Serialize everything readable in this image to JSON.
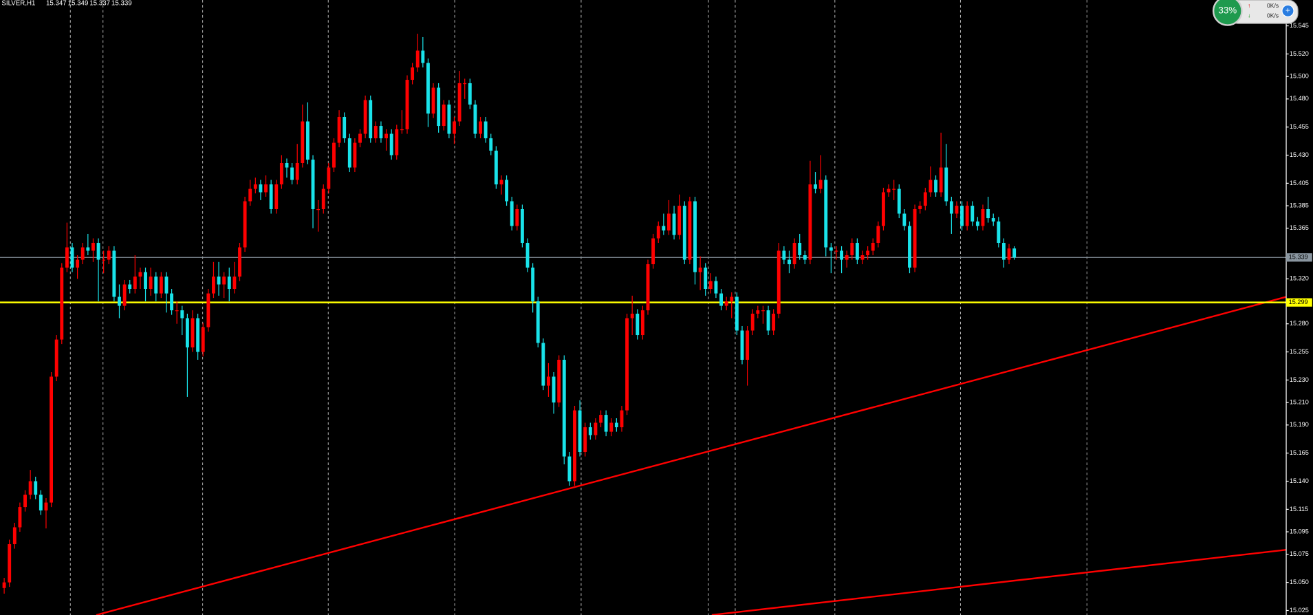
{
  "chart_data": {
    "type": "candlestick",
    "title": "SILVER,H1",
    "quote": [
      15.347,
      15.349,
      15.337,
      15.339
    ],
    "up_color": "#ff0000",
    "down_color": "#19e3ea",
    "ylim": [
      15.021,
      15.568
    ],
    "yticks": [
      15.545,
      {
        "value": 15.52,
        "label": "15.520"
      },
      {
        "value": 15.5,
        "label": "15.500"
      },
      {
        "value": 15.48,
        "label": "15.480"
      },
      15.455,
      {
        "value": 15.43,
        "label": "15.430"
      },
      15.405,
      15.385,
      15.365,
      {
        "value": 15.32,
        "label": "15.320"
      },
      {
        "value": 15.28,
        "label": "15.280"
      },
      15.255,
      {
        "value": 15.23,
        "label": "15.230"
      },
      {
        "value": 15.21,
        "label": "15.210"
      },
      {
        "value": 15.19,
        "label": "15.190"
      },
      15.165,
      {
        "value": 15.14,
        "label": "15.140"
      },
      15.115,
      15.095,
      15.075,
      {
        "value": 15.05,
        "label": "15.050"
      },
      15.025
    ],
    "price_line": {
      "value": 15.339,
      "color": "#8a96a0"
    },
    "level_line": {
      "value": 15.299,
      "color": "#ffff00"
    },
    "trendlines": {
      "color": "#ff0000",
      "lines": [
        {
          "x": [
            17.6,
            245
          ],
          "y": [
            15.021,
            15.304
          ]
        },
        {
          "x": [
            135.2,
            245
          ],
          "y": [
            15.021,
            15.079
          ]
        }
      ]
    },
    "ohlc": [
      [
        15.045,
        15.054,
        15.04,
        15.05
      ],
      [
        15.05,
        15.088,
        15.046,
        15.084
      ],
      [
        15.084,
        15.103,
        15.08,
        15.099
      ],
      [
        15.099,
        15.121,
        15.095,
        15.117
      ],
      [
        15.117,
        15.132,
        15.113,
        15.128
      ],
      [
        15.128,
        15.15,
        15.124,
        15.14
      ],
      [
        15.14,
        15.144,
        15.124,
        15.128
      ],
      [
        15.128,
        15.132,
        15.11,
        15.114
      ],
      [
        15.114,
        15.125,
        15.098,
        15.121
      ],
      [
        15.121,
        15.237,
        15.117,
        15.233
      ],
      [
        15.233,
        15.27,
        15.229,
        15.266
      ],
      [
        15.266,
        15.334,
        15.262,
        15.33
      ],
      [
        15.33,
        15.37,
        15.326,
        15.348
      ],
      [
        15.348,
        15.352,
        15.326,
        15.33
      ],
      [
        15.33,
        15.341,
        15.32,
        15.337
      ],
      [
        15.337,
        15.352,
        15.333,
        15.348
      ],
      [
        15.348,
        15.36,
        15.341,
        15.345
      ],
      [
        15.345,
        15.356,
        15.335,
        15.352
      ],
      [
        15.352,
        15.356,
        15.3,
        15.337
      ],
      [
        15.337,
        15.345,
        15.325,
        15.337
      ],
      [
        15.337,
        15.349,
        15.333,
        15.345
      ],
      [
        15.345,
        15.349,
        15.3,
        15.304
      ],
      [
        15.304,
        15.315,
        15.285,
        15.296
      ],
      [
        15.296,
        15.319,
        15.292,
        15.315
      ],
      [
        15.315,
        15.319,
        15.307,
        15.311
      ],
      [
        15.311,
        15.341,
        15.307,
        15.322
      ],
      [
        15.322,
        15.33,
        15.311,
        15.326
      ],
      [
        15.326,
        15.33,
        15.3,
        15.311
      ],
      [
        15.311,
        15.33,
        15.305,
        15.322
      ],
      [
        15.322,
        15.326,
        15.3,
        15.307
      ],
      [
        15.307,
        15.326,
        15.303,
        15.322
      ],
      [
        15.322,
        15.326,
        15.29,
        15.307
      ],
      [
        15.307,
        15.311,
        15.288,
        15.292
      ],
      [
        15.292,
        15.3,
        15.28,
        15.292
      ],
      [
        15.292,
        15.296,
        15.27,
        15.285
      ],
      [
        15.285,
        15.289,
        15.215,
        15.259
      ],
      [
        15.259,
        15.292,
        15.255,
        15.285
      ],
      [
        15.285,
        15.289,
        15.248,
        15.255
      ],
      [
        15.255,
        15.281,
        15.251,
        15.277
      ],
      [
        15.277,
        15.311,
        15.273,
        15.307
      ],
      [
        15.307,
        15.335,
        15.303,
        15.322
      ],
      [
        15.322,
        15.335,
        15.305,
        15.315
      ],
      [
        15.315,
        15.326,
        15.303,
        15.322
      ],
      [
        15.322,
        15.33,
        15.3,
        15.311
      ],
      [
        15.311,
        15.335,
        15.307,
        15.322
      ],
      [
        15.322,
        15.352,
        15.318,
        15.348
      ],
      [
        15.348,
        15.393,
        15.344,
        15.389
      ],
      [
        15.389,
        15.408,
        15.385,
        15.4
      ],
      [
        15.4,
        15.41,
        15.396,
        15.404
      ],
      [
        15.404,
        15.408,
        15.39,
        15.397
      ],
      [
        15.397,
        15.412,
        15.393,
        15.404
      ],
      [
        15.404,
        15.408,
        15.378,
        15.382
      ],
      [
        15.382,
        15.408,
        15.378,
        15.404
      ],
      [
        15.404,
        15.43,
        15.4,
        15.423
      ],
      [
        15.423,
        15.427,
        15.41,
        15.419
      ],
      [
        15.419,
        15.423,
        15.404,
        15.408
      ],
      [
        15.408,
        15.44,
        15.404,
        15.423
      ],
      [
        15.423,
        15.475,
        15.419,
        15.46
      ],
      [
        15.46,
        15.477,
        15.422,
        15.426
      ],
      [
        15.426,
        15.43,
        15.365,
        15.382
      ],
      [
        15.382,
        15.39,
        15.362,
        15.382
      ],
      [
        15.382,
        15.404,
        15.378,
        15.4
      ],
      [
        15.4,
        15.423,
        15.396,
        15.419
      ],
      [
        15.419,
        15.445,
        15.415,
        15.441
      ],
      [
        15.441,
        15.47,
        15.437,
        15.464
      ],
      [
        15.464,
        15.468,
        15.441,
        15.445
      ],
      [
        15.445,
        15.449,
        15.415,
        15.419
      ],
      [
        15.419,
        15.445,
        15.415,
        15.441
      ],
      [
        15.441,
        15.453,
        15.437,
        15.449
      ],
      [
        15.449,
        15.483,
        15.445,
        15.479
      ],
      [
        15.479,
        15.483,
        15.441,
        15.445
      ],
      [
        15.445,
        15.46,
        15.441,
        15.456
      ],
      [
        15.456,
        15.46,
        15.441,
        15.445
      ],
      [
        15.445,
        15.453,
        15.434,
        15.449
      ],
      [
        15.449,
        15.453,
        15.426,
        15.43
      ],
      [
        15.43,
        15.457,
        15.426,
        15.453
      ],
      [
        15.453,
        15.47,
        15.449,
        15.453
      ],
      [
        15.453,
        15.501,
        15.449,
        15.497
      ],
      [
        15.497,
        15.512,
        15.493,
        15.508
      ],
      [
        15.508,
        15.538,
        15.504,
        15.523
      ],
      [
        15.523,
        15.535,
        15.508,
        15.512
      ],
      [
        15.512,
        15.516,
        15.455,
        15.467
      ],
      [
        15.467,
        15.494,
        15.463,
        15.49
      ],
      [
        15.49,
        15.494,
        15.45,
        15.456
      ],
      [
        15.456,
        15.479,
        15.452,
        15.475
      ],
      [
        15.475,
        15.479,
        15.445,
        15.449
      ],
      [
        15.449,
        15.464,
        15.44,
        15.46
      ],
      [
        15.46,
        15.505,
        15.456,
        15.494
      ],
      [
        15.494,
        15.498,
        15.48,
        15.494
      ],
      [
        15.494,
        15.498,
        15.471,
        15.475
      ],
      [
        15.475,
        15.479,
        15.445,
        15.449
      ],
      [
        15.449,
        15.464,
        15.445,
        15.46
      ],
      [
        15.46,
        15.464,
        15.441,
        15.445
      ],
      [
        15.445,
        15.449,
        15.43,
        15.434
      ],
      [
        15.434,
        15.438,
        15.4,
        15.404
      ],
      [
        15.404,
        15.412,
        15.395,
        15.408
      ],
      [
        15.408,
        15.412,
        15.385,
        15.389
      ],
      [
        15.389,
        15.393,
        15.363,
        15.367
      ],
      [
        15.367,
        15.386,
        15.363,
        15.382
      ],
      [
        15.382,
        15.386,
        15.348,
        15.352
      ],
      [
        15.352,
        15.356,
        15.326,
        15.33
      ],
      [
        15.33,
        15.334,
        15.29,
        15.3
      ],
      [
        15.3,
        15.304,
        15.259,
        15.263
      ],
      [
        15.263,
        15.267,
        15.221,
        15.225
      ],
      [
        15.225,
        15.245,
        15.215,
        15.233
      ],
      [
        15.233,
        15.237,
        15.2,
        15.21
      ],
      [
        15.21,
        15.252,
        15.206,
        15.248
      ],
      [
        15.248,
        15.252,
        15.155,
        15.162
      ],
      [
        15.162,
        15.166,
        15.136,
        15.14
      ],
      [
        15.14,
        15.207,
        15.136,
        15.203
      ],
      [
        15.203,
        15.212,
        15.162,
        15.166
      ],
      [
        15.166,
        15.192,
        15.162,
        15.188
      ],
      [
        15.188,
        15.192,
        15.177,
        15.181
      ],
      [
        15.181,
        15.196,
        15.177,
        15.192
      ],
      [
        15.192,
        15.203,
        15.188,
        15.199
      ],
      [
        15.199,
        15.203,
        15.18,
        15.184
      ],
      [
        15.184,
        15.196,
        15.18,
        15.192
      ],
      [
        15.192,
        15.196,
        15.184,
        15.188
      ],
      [
        15.188,
        15.207,
        15.184,
        15.203
      ],
      [
        15.203,
        15.289,
        15.199,
        15.285
      ],
      [
        15.285,
        15.305,
        15.27,
        15.289
      ],
      [
        15.289,
        15.293,
        15.266,
        15.27
      ],
      [
        15.27,
        15.296,
        15.266,
        15.292
      ],
      [
        15.292,
        15.337,
        15.288,
        15.333
      ],
      [
        15.333,
        15.36,
        15.329,
        15.356
      ],
      [
        15.356,
        15.371,
        15.352,
        15.367
      ],
      [
        15.367,
        15.378,
        15.359,
        15.363
      ],
      [
        15.363,
        15.39,
        15.359,
        15.378
      ],
      [
        15.378,
        15.385,
        15.355,
        15.359
      ],
      [
        15.359,
        15.395,
        15.355,
        15.385
      ],
      [
        15.385,
        15.389,
        15.333,
        15.337
      ],
      [
        15.337,
        15.393,
        15.333,
        15.389
      ],
      [
        15.389,
        15.393,
        15.315,
        15.326
      ],
      [
        15.326,
        15.34,
        15.31,
        15.33
      ],
      [
        15.33,
        15.334,
        15.305,
        15.311
      ],
      [
        15.311,
        15.325,
        15.307,
        15.318
      ],
      [
        15.318,
        15.322,
        15.303,
        15.307
      ],
      [
        15.307,
        15.311,
        15.292,
        15.296
      ],
      [
        15.296,
        15.304,
        15.292,
        15.3
      ],
      [
        15.3,
        15.308,
        15.285,
        15.304
      ],
      [
        15.304,
        15.308,
        15.27,
        15.274
      ],
      [
        15.274,
        15.278,
        15.244,
        15.248
      ],
      [
        15.248,
        15.278,
        15.225,
        15.274
      ],
      [
        15.274,
        15.293,
        15.27,
        15.289
      ],
      [
        15.289,
        15.296,
        15.285,
        15.292
      ],
      [
        15.292,
        15.296,
        15.28,
        15.292
      ],
      [
        15.292,
        15.296,
        15.27,
        15.274
      ],
      [
        15.274,
        15.293,
        15.27,
        15.289
      ],
      [
        15.289,
        15.352,
        15.285,
        15.345
      ],
      [
        15.345,
        15.349,
        15.333,
        15.337
      ],
      [
        15.337,
        15.345,
        15.325,
        15.333
      ],
      [
        15.333,
        15.356,
        15.329,
        15.352
      ],
      [
        15.352,
        15.36,
        15.337,
        15.341
      ],
      [
        15.341,
        15.345,
        15.333,
        15.337
      ],
      [
        15.337,
        15.425,
        15.333,
        15.404
      ],
      [
        15.404,
        15.415,
        15.396,
        15.4
      ],
      [
        15.4,
        15.43,
        15.396,
        15.408
      ],
      [
        15.408,
        15.412,
        15.34,
        15.348
      ],
      [
        15.348,
        15.352,
        15.325,
        15.345
      ],
      [
        15.345,
        15.349,
        15.337,
        15.345
      ],
      [
        15.345,
        15.349,
        15.325,
        15.337
      ],
      [
        15.337,
        15.345,
        15.33,
        15.341
      ],
      [
        15.341,
        15.356,
        15.337,
        15.352
      ],
      [
        15.352,
        15.356,
        15.333,
        15.337
      ],
      [
        15.337,
        15.345,
        15.333,
        15.341
      ],
      [
        15.341,
        15.349,
        15.337,
        15.345
      ],
      [
        15.345,
        15.356,
        15.341,
        15.352
      ],
      [
        15.352,
        15.371,
        15.348,
        15.367
      ],
      [
        15.367,
        15.401,
        15.363,
        15.397
      ],
      [
        15.397,
        15.404,
        15.393,
        15.4
      ],
      [
        15.4,
        15.408,
        15.39,
        15.4
      ],
      [
        15.4,
        15.404,
        15.374,
        15.378
      ],
      [
        15.378,
        15.382,
        15.363,
        15.367
      ],
      [
        15.367,
        15.371,
        15.325,
        15.33
      ],
      [
        15.33,
        15.386,
        15.326,
        15.382
      ],
      [
        15.382,
        15.389,
        15.378,
        15.385
      ],
      [
        15.385,
        15.401,
        15.381,
        15.397
      ],
      [
        15.397,
        15.42,
        15.393,
        15.408
      ],
      [
        15.408,
        15.412,
        15.393,
        15.397
      ],
      [
        15.397,
        15.45,
        15.393,
        15.419
      ],
      [
        15.419,
        15.44,
        15.385,
        15.389
      ],
      [
        15.389,
        15.393,
        15.36,
        15.378
      ],
      [
        15.378,
        15.389,
        15.374,
        15.385
      ],
      [
        15.385,
        15.389,
        15.363,
        15.367
      ],
      [
        15.367,
        15.389,
        15.363,
        15.385
      ],
      [
        15.385,
        15.389,
        15.367,
        15.371
      ],
      [
        15.371,
        15.375,
        15.363,
        15.367
      ],
      [
        15.367,
        15.386,
        15.363,
        15.382
      ],
      [
        15.382,
        15.393,
        15.37,
        15.374
      ],
      [
        15.374,
        15.378,
        15.367,
        15.371
      ],
      [
        15.371,
        15.375,
        15.348,
        15.352
      ],
      [
        15.352,
        15.356,
        15.33,
        15.337
      ],
      [
        15.337,
        15.351,
        15.333,
        15.347
      ],
      [
        15.347,
        15.349,
        15.337,
        15.339
      ]
    ]
  },
  "widget": {
    "percent": "33%",
    "upload": "0K/s",
    "download": "0K/s"
  }
}
